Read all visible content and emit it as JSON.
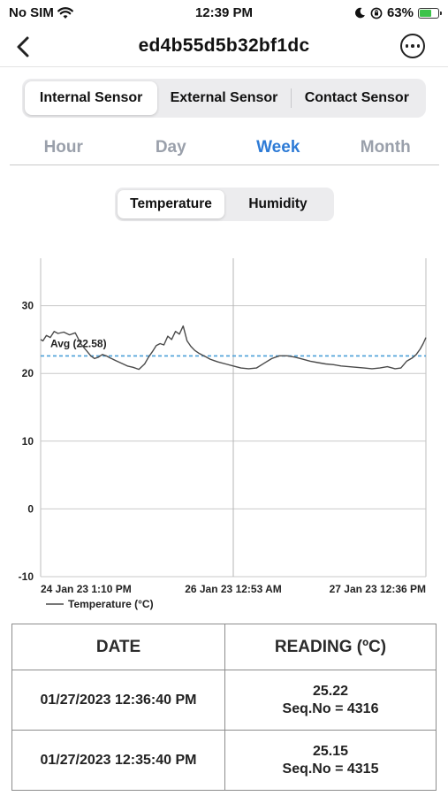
{
  "status": {
    "carrier": "No SIM",
    "time": "12:39 PM",
    "battery": "63%",
    "battery_level": 0.63
  },
  "nav": {
    "title": "ed4b55d5b32bf1dc"
  },
  "sensor_tabs": [
    {
      "label": "Internal Sensor",
      "active": true
    },
    {
      "label": "External Sensor",
      "active": false
    },
    {
      "label": "Contact Sensor",
      "active": false
    }
  ],
  "period_tabs": [
    {
      "label": "Hour",
      "active": false
    },
    {
      "label": "Day",
      "active": false
    },
    {
      "label": "Week",
      "active": true
    },
    {
      "label": "Month",
      "active": false
    }
  ],
  "metric_tabs": [
    {
      "label": "Temperature",
      "active": true
    },
    {
      "label": "Humidity",
      "active": false
    }
  ],
  "colors": {
    "accent": "#2e7bd6",
    "inactive_tab": "#9aa0ab",
    "avg_line": "#4a9fd8",
    "series_line": "#4a4a4a"
  },
  "chart_data": {
    "type": "line",
    "ylim": [
      -10,
      37
    ],
    "yticks": [
      -10,
      0,
      10,
      20,
      30
    ],
    "xlim": [
      0,
      100
    ],
    "xticks": [
      {
        "x": 0,
        "label": "24 Jan 23 1:10 PM"
      },
      {
        "x": 50,
        "label": "26 Jan 23 12:53 AM"
      },
      {
        "x": 100,
        "label": "27 Jan 23 12:36 PM"
      }
    ],
    "grid": true,
    "legend": "bottom-left",
    "average": {
      "value": 22.58,
      "label": "Avg (22.58)"
    },
    "series": [
      {
        "name": "Temperature (°C)",
        "x": [
          0,
          0.6,
          1.5,
          2.5,
          3.5,
          4.5,
          6,
          7.5,
          9,
          10.5,
          12,
          13,
          14,
          15,
          16,
          17,
          18,
          19.5,
          21,
          22.5,
          24,
          25.5,
          27,
          28,
          29,
          30,
          31,
          32,
          33,
          34,
          35,
          36,
          37,
          38,
          39,
          40,
          41,
          42,
          43,
          44,
          45,
          46,
          48,
          50,
          52,
          54,
          56,
          58,
          60,
          62,
          64,
          66,
          68,
          70,
          72,
          74,
          76,
          78,
          80,
          82,
          84,
          86,
          88,
          90,
          92,
          93.5,
          95,
          96.5,
          97.5,
          98.5,
          99.3,
          100
        ],
        "y": [
          25.0,
          24.8,
          25.6,
          25.3,
          26.2,
          25.9,
          26.1,
          25.7,
          26.0,
          24.3,
          23.3,
          22.6,
          22.2,
          22.4,
          22.8,
          22.6,
          22.3,
          21.9,
          21.5,
          21.1,
          20.9,
          20.6,
          21.4,
          22.4,
          23.2,
          24.1,
          24.4,
          24.2,
          25.5,
          25.0,
          26.2,
          25.8,
          27.0,
          24.8,
          24.0,
          23.4,
          23.0,
          22.7,
          22.4,
          22.1,
          21.9,
          21.7,
          21.4,
          21.1,
          20.8,
          20.7,
          20.8,
          21.5,
          22.2,
          22.6,
          22.6,
          22.4,
          22.1,
          21.8,
          21.6,
          21.4,
          21.3,
          21.1,
          21.0,
          20.9,
          20.8,
          20.7,
          20.8,
          21.0,
          20.7,
          20.8,
          21.8,
          22.3,
          22.8,
          23.6,
          24.4,
          25.3
        ]
      }
    ]
  },
  "table": {
    "headers": [
      "DATE",
      "READING (ºC)"
    ],
    "rows": [
      {
        "date": "01/27/2023 12:36:40 PM",
        "value": "25.22",
        "seq": "Seq.No = 4316"
      },
      {
        "date": "01/27/2023 12:35:40 PM",
        "value": "25.15",
        "seq": "Seq.No = 4315"
      }
    ]
  }
}
